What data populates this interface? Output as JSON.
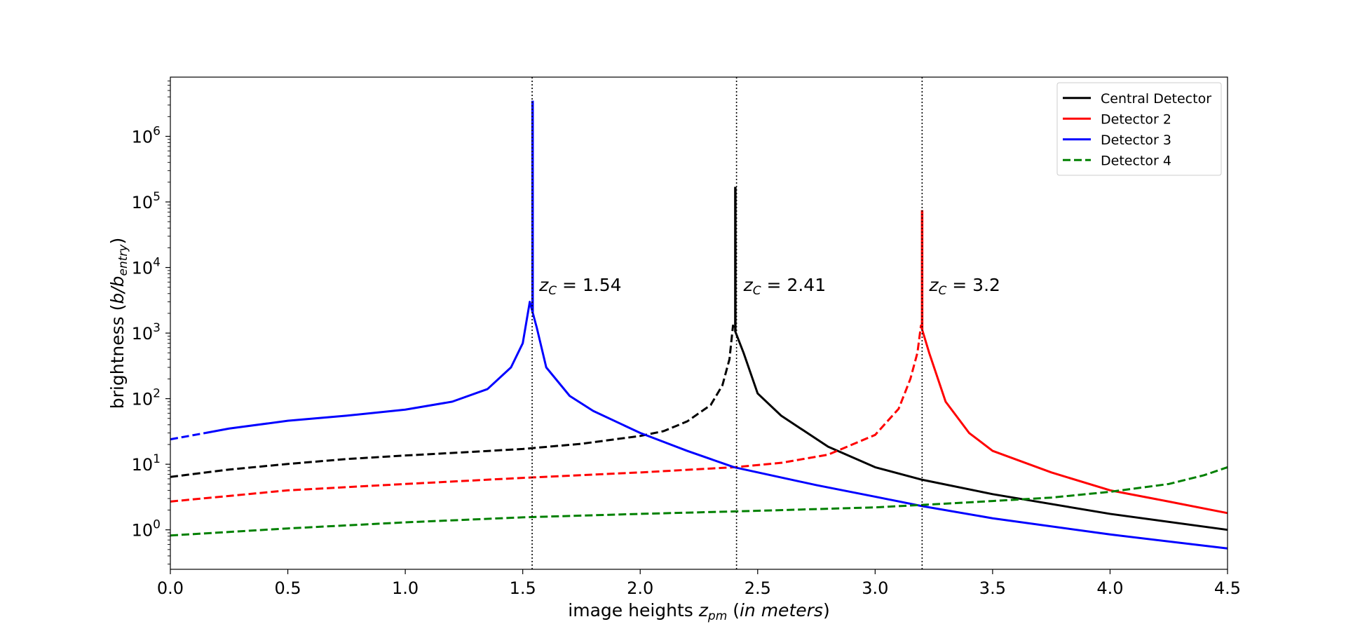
{
  "chart_data": {
    "type": "line",
    "title": "",
    "xlabel": {
      "pre": "image heights ",
      "sym": "z",
      "sub": "pm",
      "post_open": " (",
      "italic": "in meters",
      "post_close": ")"
    },
    "ylabel": {
      "pre": "brightness (",
      "italic": "b/b",
      "sub": "entry",
      "post": ")"
    },
    "x_range": [
      0.0,
      4.5
    ],
    "y_scale": "log",
    "y_range": [
      0.25,
      8000000
    ],
    "x_ticks": [
      0.0,
      0.5,
      1.0,
      1.5,
      2.0,
      2.5,
      3.0,
      3.5,
      4.0,
      4.5
    ],
    "x_tick_labels": [
      "0.0",
      "0.5",
      "1.0",
      "1.5",
      "2.0",
      "2.5",
      "3.0",
      "3.5",
      "4.0",
      "4.5"
    ],
    "y_ticks": [
      1,
      10,
      100,
      1000,
      10000,
      100000,
      1000000
    ],
    "y_tick_labels": [
      {
        "base": "10",
        "exp": "0"
      },
      {
        "base": "10",
        "exp": "1"
      },
      {
        "base": "10",
        "exp": "2"
      },
      {
        "base": "10",
        "exp": "3"
      },
      {
        "base": "10",
        "exp": "4"
      },
      {
        "base": "10",
        "exp": "5"
      },
      {
        "base": "10",
        "exp": "6"
      }
    ],
    "grid": false,
    "legend_position": "top-right",
    "critical_lines": [
      {
        "x": 1.54,
        "label_sym": "z",
        "label_sub": "C",
        "label_text": " = 1.54"
      },
      {
        "x": 2.41,
        "label_sym": "z",
        "label_sub": "C",
        "label_text": " = 2.41"
      },
      {
        "x": 3.2,
        "label_sym": "z",
        "label_sub": "C",
        "label_text": " = 3.2"
      }
    ],
    "annotation_y": 5500,
    "series": [
      {
        "name": "Central Detector",
        "color": "#000000",
        "legend_style": "solid",
        "peak_x": 2.405,
        "peak_y": 170000,
        "dashed_until": 2.405,
        "points": [
          [
            0.0,
            6.4
          ],
          [
            0.25,
            8.3
          ],
          [
            0.5,
            10.1
          ],
          [
            0.75,
            12.0
          ],
          [
            1.0,
            13.6
          ],
          [
            1.25,
            15.2
          ],
          [
            1.5,
            17.1
          ],
          [
            1.75,
            20.5
          ],
          [
            2.0,
            27.0
          ],
          [
            2.1,
            32.0
          ],
          [
            2.2,
            45.0
          ],
          [
            2.3,
            80.0
          ],
          [
            2.35,
            160.0
          ],
          [
            2.38,
            400.0
          ],
          [
            2.395,
            1300.0
          ],
          [
            2.44,
            500.0
          ],
          [
            2.5,
            120.0
          ],
          [
            2.6,
            55.0
          ],
          [
            2.8,
            18.5
          ],
          [
            3.0,
            9.0
          ],
          [
            3.2,
            5.8
          ],
          [
            3.5,
            3.5
          ],
          [
            4.0,
            1.75
          ],
          [
            4.5,
            1.0
          ]
        ]
      },
      {
        "name": "Detector 2",
        "color": "#ff0000",
        "legend_style": "solid",
        "peak_x": 3.2,
        "peak_y": 75000,
        "dashed_until": 3.2,
        "points": [
          [
            0.0,
            2.7
          ],
          [
            0.5,
            4.0
          ],
          [
            1.0,
            5.0
          ],
          [
            1.5,
            6.2
          ],
          [
            2.0,
            7.5
          ],
          [
            2.4,
            9.0
          ],
          [
            2.6,
            10.5
          ],
          [
            2.8,
            14.0
          ],
          [
            3.0,
            28.0
          ],
          [
            3.1,
            70.0
          ],
          [
            3.15,
            200.0
          ],
          [
            3.18,
            500.0
          ],
          [
            3.195,
            1300.0
          ],
          [
            3.23,
            500.0
          ],
          [
            3.3,
            90.0
          ],
          [
            3.4,
            30.0
          ],
          [
            3.5,
            16.0
          ],
          [
            3.75,
            7.5
          ],
          [
            4.0,
            4.0
          ],
          [
            4.25,
            2.7
          ],
          [
            4.5,
            1.8
          ]
        ]
      },
      {
        "name": "Detector 3",
        "color": "#0000ff",
        "legend_style": "solid",
        "peak_x": 1.542,
        "peak_y": 3500000,
        "dashed_until": 0.15,
        "points": [
          [
            0.0,
            24.0
          ],
          [
            0.15,
            30.0
          ],
          [
            0.25,
            35.0
          ],
          [
            0.5,
            46.0
          ],
          [
            0.75,
            55.0
          ],
          [
            1.0,
            68.0
          ],
          [
            1.2,
            90.0
          ],
          [
            1.35,
            140.0
          ],
          [
            1.45,
            300.0
          ],
          [
            1.5,
            700.0
          ],
          [
            1.53,
            3000.0
          ],
          [
            1.56,
            1200.0
          ],
          [
            1.6,
            300.0
          ],
          [
            1.7,
            110.0
          ],
          [
            1.8,
            65.0
          ],
          [
            2.0,
            30.0
          ],
          [
            2.2,
            16.0
          ],
          [
            2.4,
            9.0
          ],
          [
            2.75,
            4.8
          ],
          [
            3.0,
            3.2
          ],
          [
            3.2,
            2.3
          ],
          [
            3.5,
            1.5
          ],
          [
            4.0,
            0.85
          ],
          [
            4.5,
            0.52
          ]
        ]
      },
      {
        "name": "Detector 4",
        "color": "#008000",
        "legend_style": "dashed",
        "dashed_until": 4.5,
        "points": [
          [
            0.0,
            0.82
          ],
          [
            0.5,
            1.05
          ],
          [
            1.0,
            1.3
          ],
          [
            1.5,
            1.55
          ],
          [
            2.0,
            1.75
          ],
          [
            2.5,
            1.95
          ],
          [
            3.0,
            2.2
          ],
          [
            3.25,
            2.45
          ],
          [
            3.5,
            2.75
          ],
          [
            3.75,
            3.1
          ],
          [
            4.0,
            3.8
          ],
          [
            4.25,
            5.0
          ],
          [
            4.4,
            6.8
          ],
          [
            4.5,
            9.0
          ]
        ]
      }
    ]
  }
}
